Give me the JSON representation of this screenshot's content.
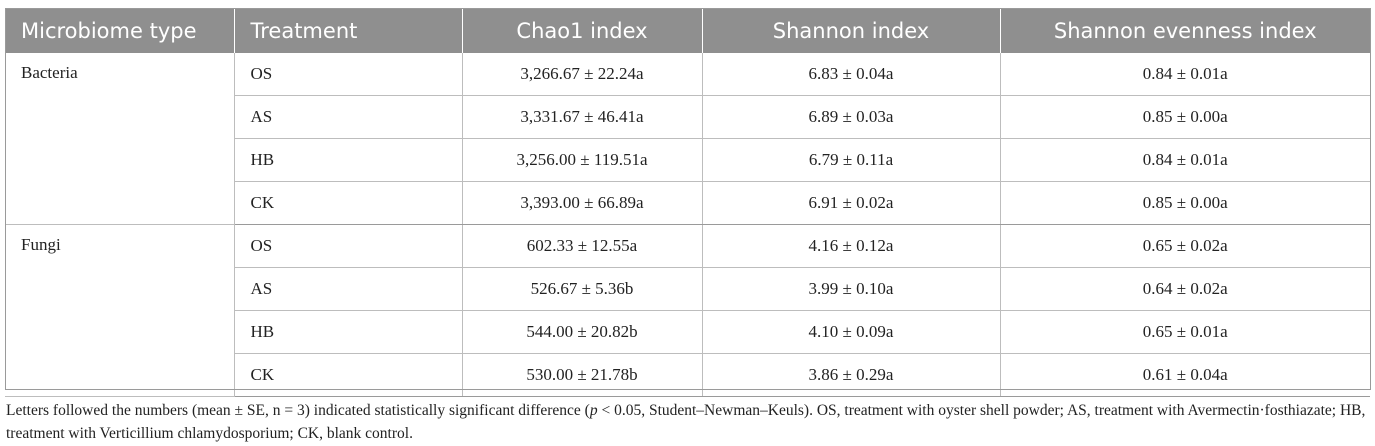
{
  "table": {
    "headers": [
      "Microbiome type",
      "Treatment",
      "Chao1 index",
      "Shannon index",
      "Shannon evenness index"
    ],
    "groups": [
      {
        "type": "Bacteria",
        "rows": [
          {
            "treatment": "OS",
            "chao1": "3,266.67 ± 22.24a",
            "shannon": "6.83 ± 0.04a",
            "evenness": "0.84 ± 0.01a"
          },
          {
            "treatment": "AS",
            "chao1": "3,331.67 ± 46.41a",
            "shannon": "6.89 ± 0.03a",
            "evenness": "0.85 ± 0.00a"
          },
          {
            "treatment": "HB",
            "chao1": "3,256.00 ± 119.51a",
            "shannon": "6.79 ± 0.11a",
            "evenness": "0.84 ± 0.01a"
          },
          {
            "treatment": "CK",
            "chao1": "3,393.00 ± 66.89a",
            "shannon": "6.91 ± 0.02a",
            "evenness": "0.85 ± 0.00a"
          }
        ]
      },
      {
        "type": "Fungi",
        "rows": [
          {
            "treatment": "OS",
            "chao1": "602.33 ± 12.55a",
            "shannon": "4.16 ± 0.12a",
            "evenness": "0.65 ± 0.02a"
          },
          {
            "treatment": "AS",
            "chao1": "526.67 ± 5.36b",
            "shannon": "3.99 ± 0.10a",
            "evenness": "0.64 ± 0.02a"
          },
          {
            "treatment": "HB",
            "chao1": "544.00 ± 20.82b",
            "shannon": "4.10 ± 0.09a",
            "evenness": "0.65 ± 0.01a"
          },
          {
            "treatment": "CK",
            "chao1": "530.00 ± 21.78b",
            "shannon": "3.86 ± 0.29a",
            "evenness": "0.61 ± 0.04a"
          }
        ]
      }
    ]
  },
  "footnote": {
    "line1": "Letters followed the numbers (mean ± SE, n = 3) indicated statistically significant difference (",
    "p_symbol": "p",
    "line1_rest": " < 0.05, Student–Newman–Keuls). OS, treatment with oyster shell powder; AS, treatment with Avermectin·fosthiazate; HB, treatment with Verticillium chlamydosporium; CK, blank control."
  }
}
